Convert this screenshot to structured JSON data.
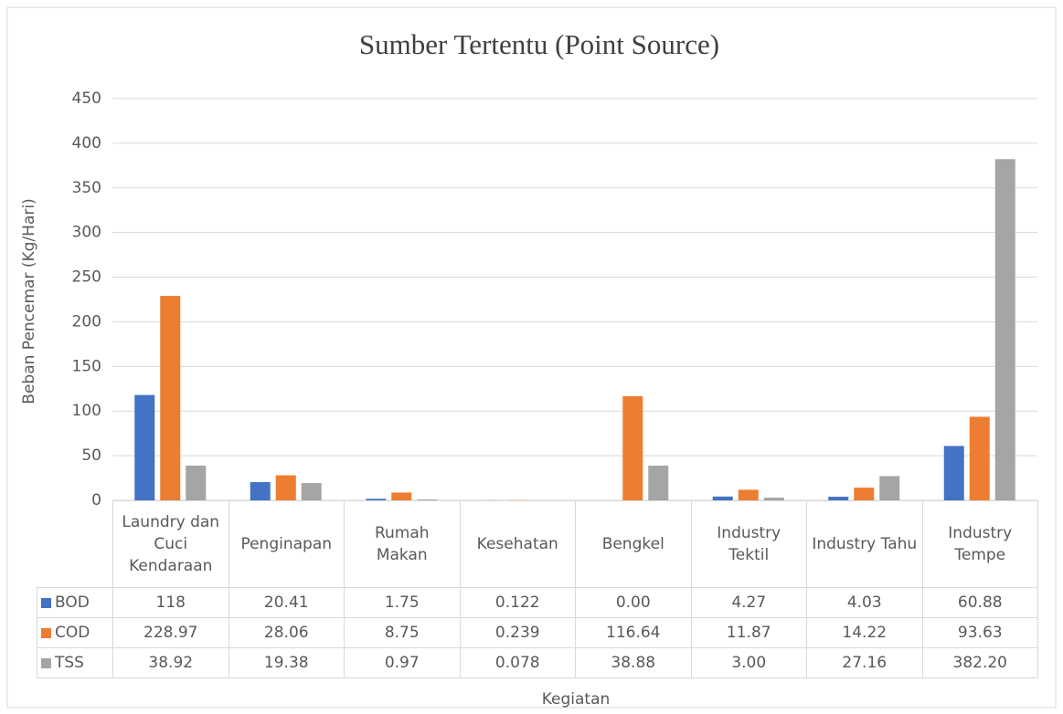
{
  "chart_data": {
    "type": "bar",
    "title": "Sumber Tertentu (Point Source)",
    "y_label": "Beban Pencemar (Kg/Hari)",
    "x_label": "Kegiatan",
    "categories": [
      "Laundry dan Cuci Kendaraan",
      "Penginapan",
      "Rumah Makan",
      "Kesehatan",
      "Bengkel",
      "Industry Tektil",
      "Industry Tahu",
      "Industry Tempe"
    ],
    "series": [
      {
        "name": "BOD",
        "color": "#4472c4",
        "values": [
          118,
          20.41,
          1.75,
          0.122,
          0,
          4.27,
          4.03,
          60.88
        ],
        "value_labels": [
          "118",
          "20.41",
          "1.75",
          "0.122",
          "0.00",
          "4.27",
          "4.03",
          "60.88"
        ]
      },
      {
        "name": "COD",
        "color": "#ed7d31",
        "values": [
          228.97,
          28.06,
          8.75,
          0.239,
          116.64,
          11.87,
          14.22,
          93.63
        ],
        "value_labels": [
          "228.97",
          "28.06",
          "8.75",
          "0.239",
          "116.64",
          "11.87",
          "14.22",
          "93.63"
        ]
      },
      {
        "name": "TSS",
        "color": "#a5a5a5",
        "values": [
          38.92,
          19.38,
          0.97,
          0.078,
          38.88,
          3,
          27.16,
          382.2
        ],
        "value_labels": [
          "38.92",
          "19.38",
          "0.97",
          "0.078",
          "38.88",
          "3.00",
          "27.16",
          "382.20"
        ]
      }
    ],
    "ylim": [
      0,
      450
    ],
    "yticks": [
      0,
      50,
      100,
      150,
      200,
      250,
      300,
      350,
      400,
      450
    ],
    "grid": true
  }
}
